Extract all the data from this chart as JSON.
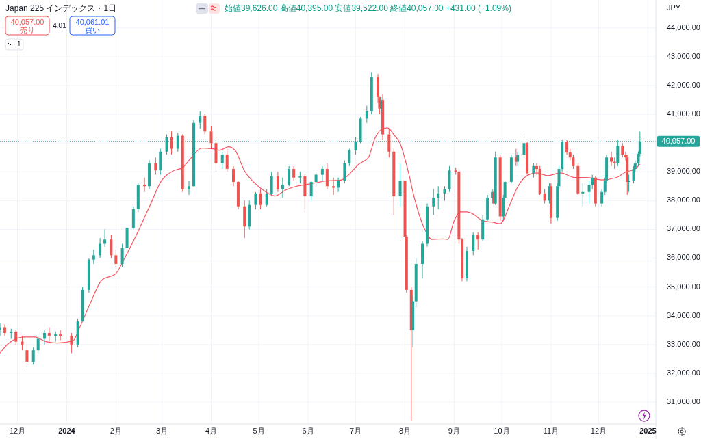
{
  "chart_data": {
    "type": "candlestick",
    "title": "Japan 225 インデックス・1日",
    "annotations": [
      "始値39,626.00 高値40,395.00 安値39,522.00 終値40,057.00 +431.00 (+1.09%)",
      "40,057.00",
      "売り",
      "4.01",
      "40,061.01",
      "買い",
      "JPY",
      "1"
    ],
    "xlim": [
      "2023-11-20",
      "2025-01-06"
    ],
    "ylim": [
      30240,
      44970
    ],
    "xticks": [
      {
        "value": "2023-12-01",
        "label": "12月"
      },
      {
        "value": "2024-01-01",
        "label": "2024"
      },
      {
        "value": "2024-02-01",
        "label": "2月"
      },
      {
        "value": "2024-03-01",
        "label": "3月"
      },
      {
        "value": "2024-04-01",
        "label": "4月"
      },
      {
        "value": "2024-05-01",
        "label": "5月"
      },
      {
        "value": "2024-06-01",
        "label": "6月"
      },
      {
        "value": "2024-07-01",
        "label": "7月"
      },
      {
        "value": "2024-08-01",
        "label": "8月"
      },
      {
        "value": "2024-09-01",
        "label": "9月"
      },
      {
        "value": "2024-10-01",
        "label": "10月"
      },
      {
        "value": "2024-11-01",
        "label": "11月"
      },
      {
        "value": "2024-12-01",
        "label": "12月"
      },
      {
        "value": "2025-01-01",
        "label": "2025"
      }
    ],
    "yticks": [
      {
        "value": 31000,
        "label": "31,000.00"
      },
      {
        "value": 32000,
        "label": "32,000.00"
      },
      {
        "value": 33000,
        "label": "33,000.00"
      },
      {
        "value": 34000,
        "label": "34,000.00"
      },
      {
        "value": 35000,
        "label": "35,000.00"
      },
      {
        "value": 36000,
        "label": "36,000.00"
      },
      {
        "value": 37000,
        "label": "37,000.00"
      },
      {
        "value": 38000,
        "label": "38,000.00"
      },
      {
        "value": 39000,
        "label": "39,000.00"
      },
      {
        "value": 40000,
        "label": null
      },
      {
        "value": 41000,
        "label": "41,000.00"
      },
      {
        "value": 42000,
        "label": "42,000.00"
      },
      {
        "value": 43000,
        "label": "43,000.00"
      },
      {
        "value": 44000,
        "label": "44,000.00"
      }
    ],
    "grid": true,
    "ref_lines": [
      {
        "axis": "y",
        "value": 40057,
        "label": "40,057.00",
        "color": "#26a69a",
        "line_style": "dotted"
      }
    ],
    "series": [
      {
        "type": "candlestick",
        "x": [
          "2023-11-20",
          "2023-11-23",
          "2023-11-27",
          "2023-11-30",
          "2023-12-04",
          "2023-12-07",
          "2023-12-11",
          "2023-12-14",
          "2023-12-18",
          "2023-12-21",
          "2023-12-25",
          "2023-12-28",
          "2024-01-04",
          "2024-01-08",
          "2024-01-11",
          "2024-01-15",
          "2024-01-18",
          "2024-01-22",
          "2024-01-25",
          "2024-01-29",
          "2024-02-01",
          "2024-02-05",
          "2024-02-08",
          "2024-02-12",
          "2024-02-15",
          "2024-02-19",
          "2024-02-22",
          "2024-02-26",
          "2024-02-29",
          "2024-03-04",
          "2024-03-07",
          "2024-03-11",
          "2024-03-14",
          "2024-03-18",
          "2024-03-21",
          "2024-03-25",
          "2024-03-28",
          "2024-04-01",
          "2024-04-04",
          "2024-04-08",
          "2024-04-11",
          "2024-04-15",
          "2024-04-18",
          "2024-04-22",
          "2024-04-25",
          "2024-04-29",
          "2024-05-02",
          "2024-05-06",
          "2024-05-09",
          "2024-05-13",
          "2024-05-16",
          "2024-05-20",
          "2024-05-23",
          "2024-05-27",
          "2024-05-30",
          "2024-06-03",
          "2024-06-06",
          "2024-06-10",
          "2024-06-13",
          "2024-06-17",
          "2024-06-20",
          "2024-06-24",
          "2024-06-27",
          "2024-07-01",
          "2024-07-04",
          "2024-07-08",
          "2024-07-11",
          "2024-07-15",
          "2024-07-16",
          "2024-07-17",
          "2024-07-18",
          "2024-07-22",
          "2024-07-25",
          "2024-07-29",
          "2024-08-01",
          "2024-08-02",
          "2024-08-05",
          "2024-08-06",
          "2024-08-08",
          "2024-08-12",
          "2024-08-15",
          "2024-08-19",
          "2024-08-22",
          "2024-08-26",
          "2024-08-29",
          "2024-09-02",
          "2024-09-04",
          "2024-09-06",
          "2024-09-09",
          "2024-09-13",
          "2024-09-16",
          "2024-09-19",
          "2024-09-22",
          "2024-09-25",
          "2024-09-26",
          "2024-09-27",
          "2024-09-30",
          "2024-10-02",
          "2024-10-03",
          "2024-10-07",
          "2024-10-10",
          "2024-10-11",
          "2024-10-15",
          "2024-10-17",
          "2024-10-21",
          "2024-10-23",
          "2024-10-25",
          "2024-10-28",
          "2024-10-31",
          "2024-11-01",
          "2024-11-05",
          "2024-11-06",
          "2024-11-08",
          "2024-11-11",
          "2024-11-13",
          "2024-11-15",
          "2024-11-18",
          "2024-11-21",
          "2024-11-25",
          "2024-11-27",
          "2024-11-29",
          "2024-12-03",
          "2024-12-05",
          "2024-12-06",
          "2024-12-09",
          "2024-12-11",
          "2024-12-13",
          "2024-12-16",
          "2024-12-18",
          "2024-12-19",
          "2024-12-20",
          "2024-12-23",
          "2024-12-24",
          "2024-12-26",
          "2024-12-27"
        ],
        "ohlc": [
          [
            33500,
            33750,
            33300,
            33600
          ],
          [
            33600,
            33700,
            33300,
            33400
          ],
          [
            33400,
            33550,
            33200,
            33450
          ],
          [
            33450,
            33500,
            33000,
            33100
          ],
          [
            33100,
            33300,
            32800,
            33000
          ],
          [
            32800,
            33000,
            32200,
            32400
          ],
          [
            32400,
            32900,
            32300,
            32800
          ],
          [
            32800,
            33300,
            32700,
            33200
          ],
          [
            33200,
            33500,
            33000,
            33400
          ],
          [
            33400,
            33600,
            33100,
            33300
          ],
          [
            33300,
            33450,
            33100,
            33350
          ],
          [
            33350,
            33500,
            33150,
            33300
          ],
          [
            33300,
            33400,
            32700,
            33000
          ],
          [
            33000,
            33900,
            32900,
            33800
          ],
          [
            33800,
            35000,
            33800,
            34900
          ],
          [
            34900,
            36000,
            34800,
            35950
          ],
          [
            35950,
            36300,
            35800,
            36100
          ],
          [
            36100,
            36700,
            36000,
            36500
          ],
          [
            36500,
            37000,
            36400,
            36650
          ],
          [
            36650,
            36800,
            36000,
            36100
          ],
          [
            36100,
            36300,
            35700,
            35800
          ],
          [
            35800,
            36500,
            35700,
            36350
          ],
          [
            36350,
            37100,
            36300,
            37050
          ],
          [
            37050,
            37800,
            37000,
            37700
          ],
          [
            37700,
            38600,
            37600,
            38550
          ],
          [
            38550,
            38800,
            38300,
            38500
          ],
          [
            38500,
            39400,
            38400,
            39300
          ],
          [
            39300,
            39500,
            38900,
            39050
          ],
          [
            39050,
            39800,
            38900,
            39700
          ],
          [
            39700,
            40300,
            39600,
            40200
          ],
          [
            40200,
            40400,
            39600,
            39800
          ],
          [
            39800,
            40350,
            39700,
            40250
          ],
          [
            40250,
            40300,
            38300,
            38400
          ],
          [
            38400,
            38700,
            38200,
            38500
          ],
          [
            38500,
            40800,
            38500,
            40700
          ],
          [
            40700,
            41100,
            40500,
            40950
          ],
          [
            40950,
            41000,
            40300,
            40400
          ],
          [
            40400,
            40600,
            39800,
            40000
          ],
          [
            40000,
            40100,
            39000,
            39300
          ],
          [
            39300,
            39700,
            39100,
            39600
          ],
          [
            39600,
            39800,
            39000,
            39100
          ],
          [
            39100,
            39200,
            38500,
            38650
          ],
          [
            38650,
            38700,
            37700,
            37800
          ],
          [
            37800,
            38000,
            36700,
            37100
          ],
          [
            37100,
            38000,
            37000,
            37850
          ],
          [
            37850,
            38300,
            37700,
            38250
          ],
          [
            38250,
            38400,
            37700,
            37850
          ],
          [
            37850,
            38400,
            37800,
            38250
          ],
          [
            38250,
            39000,
            38200,
            38850
          ],
          [
            38850,
            39000,
            38300,
            38400
          ],
          [
            38400,
            38800,
            38100,
            38550
          ],
          [
            38550,
            39200,
            38500,
            39100
          ],
          [
            39100,
            39200,
            38700,
            38800
          ],
          [
            38800,
            39000,
            38600,
            38850
          ],
          [
            38850,
            38900,
            37600,
            38150
          ],
          [
            38150,
            38700,
            38000,
            38650
          ],
          [
            38650,
            39000,
            38500,
            38900
          ],
          [
            38900,
            39200,
            38700,
            39100
          ],
          [
            39100,
            39300,
            38400,
            38500
          ],
          [
            38500,
            38800,
            38200,
            38450
          ],
          [
            38450,
            38800,
            38300,
            38700
          ],
          [
            38700,
            39400,
            38600,
            39300
          ],
          [
            39300,
            39800,
            39200,
            39750
          ],
          [
            39750,
            40200,
            39600,
            40050
          ],
          [
            40050,
            40900,
            40000,
            40850
          ],
          [
            40850,
            41300,
            40700,
            41100
          ],
          [
            41100,
            42450,
            41000,
            42300
          ],
          [
            42300,
            42400,
            41400,
            41600
          ],
          [
            41600,
            41600,
            41000,
            41200
          ],
          [
            41200,
            41600,
            41100,
            41500
          ],
          [
            41500,
            41700,
            40100,
            40300
          ],
          [
            40300,
            40500,
            39500,
            39700
          ],
          [
            39700,
            39800,
            37500,
            38150
          ],
          [
            38150,
            39300,
            37800,
            38700
          ],
          [
            38700,
            38800,
            36700,
            36750
          ],
          [
            36750,
            36800,
            34800,
            34900
          ],
          [
            34900,
            35000,
            30350,
            33500
          ],
          [
            33500,
            34700,
            32900,
            34500
          ],
          [
            34500,
            36000,
            34300,
            35800
          ],
          [
            35800,
            36600,
            35300,
            36500
          ],
          [
            36500,
            37900,
            36400,
            37800
          ],
          [
            37800,
            38400,
            37500,
            38100
          ],
          [
            38100,
            38500,
            37700,
            38250
          ],
          [
            38250,
            38500,
            38000,
            38400
          ],
          [
            38400,
            39200,
            38300,
            39050
          ],
          [
            39050,
            39150,
            38900,
            39000
          ],
          [
            39000,
            39050,
            36500,
            36650
          ],
          [
            36650,
            36700,
            35200,
            35300
          ],
          [
            35300,
            36400,
            35200,
            36250
          ],
          [
            36250,
            36900,
            36100,
            36800
          ],
          [
            36800,
            36900,
            36300,
            36650
          ],
          [
            36650,
            37500,
            36600,
            37350
          ],
          [
            37350,
            38200,
            37300,
            38100
          ],
          [
            38100,
            38400,
            37900,
            38300
          ],
          [
            38300,
            38400,
            37800,
            37900
          ],
          [
            37900,
            39700,
            37850,
            39500
          ],
          [
            39500,
            39600,
            37300,
            37450
          ],
          [
            37450,
            38200,
            37300,
            38100
          ],
          [
            38100,
            38700,
            38000,
            38650
          ],
          [
            38650,
            39600,
            38600,
            39500
          ],
          [
            39500,
            39800,
            39200,
            39350
          ],
          [
            39350,
            39700,
            39200,
            39600
          ],
          [
            39600,
            40250,
            39500,
            40000
          ],
          [
            40000,
            40050,
            38900,
            38950
          ],
          [
            38950,
            39300,
            38800,
            39200
          ],
          [
            39200,
            39300,
            38900,
            39100
          ],
          [
            39100,
            39200,
            38200,
            38250
          ],
          [
            38250,
            38400,
            37900,
            38000
          ],
          [
            38000,
            38600,
            37900,
            38500
          ],
          [
            38500,
            38600,
            37200,
            37400
          ],
          [
            37400,
            38600,
            37300,
            38500
          ],
          [
            38500,
            39200,
            38400,
            39100
          ],
          [
            39100,
            40100,
            39000,
            40050
          ],
          [
            40050,
            40100,
            39600,
            39670
          ],
          [
            39670,
            39800,
            39400,
            39500
          ],
          [
            39500,
            39600,
            39100,
            39200
          ],
          [
            39200,
            39300,
            38200,
            38250
          ],
          [
            38250,
            38600,
            37800,
            38300
          ],
          [
            38300,
            38700,
            37900,
            38550
          ],
          [
            38550,
            38900,
            38400,
            38800
          ],
          [
            38800,
            38850,
            37800,
            37900
          ],
          [
            37900,
            38400,
            37800,
            38300
          ],
          [
            38300,
            38800,
            38200,
            38700
          ],
          [
            38700,
            39600,
            38600,
            39500
          ],
          [
            39500,
            39700,
            39200,
            39350
          ],
          [
            39350,
            39500,
            39100,
            39300
          ],
          [
            39300,
            40100,
            39200,
            39900
          ],
          [
            39900,
            40000,
            39500,
            39600
          ],
          [
            39600,
            39700,
            39400,
            39500
          ],
          [
            39500,
            39600,
            38200,
            38650
          ],
          [
            38650,
            38900,
            38300,
            38700
          ],
          [
            38700,
            39200,
            38600,
            39100
          ],
          [
            39100,
            39400,
            39000,
            39300
          ],
          [
            39300,
            39700,
            39200,
            39626
          ],
          [
            39626,
            40395,
            39522,
            40057
          ]
        ]
      },
      {
        "type": "line",
        "color": "#f7525f",
        "x": [
          "2023-11-20",
          "2023-11-25",
          "2023-12-05",
          "2023-12-12",
          "2023-12-19",
          "2023-12-26",
          "2024-01-05",
          "2024-01-09",
          "2024-01-16",
          "2024-01-23",
          "2024-02-01",
          "2024-02-06",
          "2024-02-14",
          "2024-02-22",
          "2024-03-01",
          "2024-03-08",
          "2024-03-14",
          "2024-03-19",
          "2024-03-26",
          "2024-04-02",
          "2024-04-06",
          "2024-04-12",
          "2024-04-16",
          "2024-04-22",
          "2024-04-28",
          "2024-05-05",
          "2024-05-11",
          "2024-05-18",
          "2024-05-24",
          "2024-05-31",
          "2024-06-06",
          "2024-06-12",
          "2024-06-18",
          "2024-06-22",
          "2024-06-26",
          "2024-07-03",
          "2024-07-09",
          "2024-07-13",
          "2024-07-17",
          "2024-07-21",
          "2024-07-25",
          "2024-07-29",
          "2024-08-03",
          "2024-08-07",
          "2024-08-13",
          "2024-08-18",
          "2024-08-25",
          "2024-08-28",
          "2024-09-01",
          "2024-09-05",
          "2024-09-09",
          "2024-09-13",
          "2024-09-19",
          "2024-09-25",
          "2024-09-30",
          "2024-10-06",
          "2024-10-11",
          "2024-10-17",
          "2024-10-23",
          "2024-10-30",
          "2024-11-07",
          "2024-11-16",
          "2024-11-24",
          "2024-12-03",
          "2024-12-12",
          "2024-12-18",
          "2024-12-24",
          "2024-12-27"
        ],
        "values": [
          32700,
          33020,
          33260,
          33260,
          33100,
          33050,
          33130,
          33570,
          34450,
          35230,
          35470,
          35950,
          36820,
          37780,
          38720,
          39030,
          39150,
          39460,
          39820,
          39800,
          39750,
          39870,
          39750,
          39030,
          38630,
          38320,
          38160,
          38370,
          38490,
          38560,
          38620,
          38680,
          38700,
          38720,
          38870,
          39270,
          39500,
          40150,
          40460,
          40530,
          40290,
          39980,
          39030,
          38080,
          37060,
          36650,
          36670,
          36650,
          37300,
          37610,
          37610,
          37530,
          37300,
          37250,
          37200,
          37850,
          38480,
          38870,
          38960,
          38870,
          38960,
          38800,
          38800,
          38720,
          38800,
          38990,
          39100,
          39270
        ]
      }
    ]
  }
}
